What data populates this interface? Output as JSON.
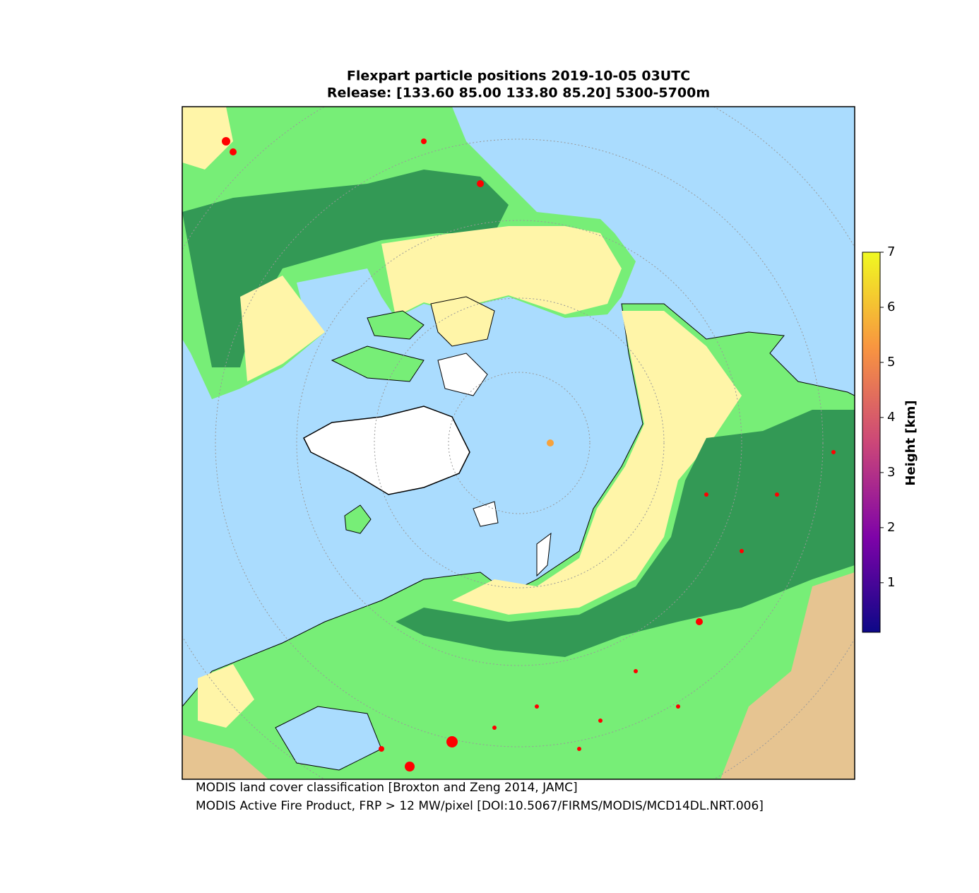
{
  "title": [
    "Flexpart particle positions 2019-10-05 03UTC",
    "Release: [133.60 85.00 133.80 85.20] 5300-5700m"
  ],
  "colorbar": {
    "label": "Height [km]",
    "lim": [
      0.1,
      7
    ],
    "ticks": [
      1,
      2,
      3,
      4,
      5,
      6,
      7
    ]
  },
  "particles": [
    {
      "height": 5.5
    }
  ],
  "notes": [
    "MODIS land cover classification [Broxton and Zeng 2014, JAMC]",
    "MODIS Active Fire Product, FRP > 12 MW/pixel [DOI:10.5067/FIRMS/MODIS/MCD14DL.NRT.006]"
  ]
}
